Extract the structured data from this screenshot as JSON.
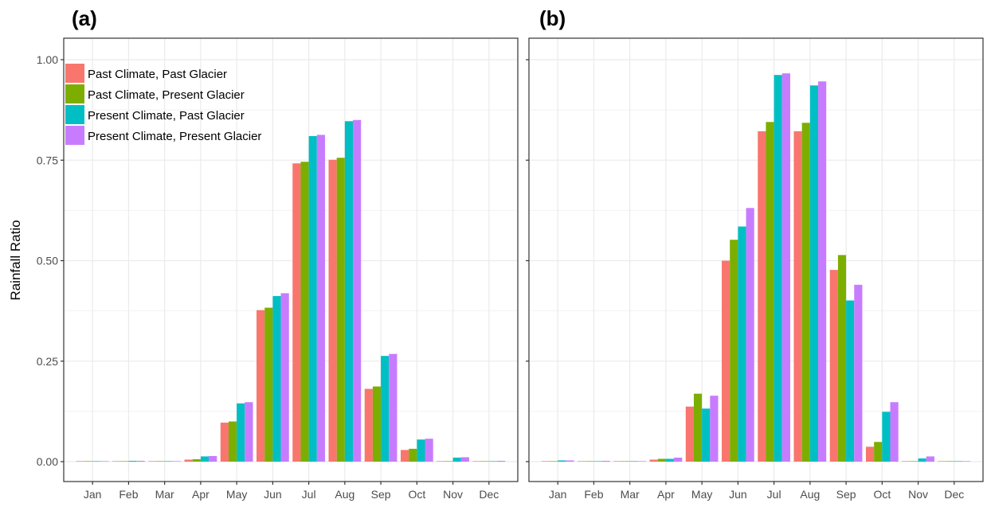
{
  "chart_data": {
    "type": "bar",
    "y_axis_label": "Rainfall Ratio",
    "ylim": [
      0,
      1.05
    ],
    "y_ticks": [
      "0.00",
      "0.25",
      "0.50",
      "0.75",
      "1.00"
    ],
    "categories": [
      "Jan",
      "Feb",
      "Mar",
      "Apr",
      "May",
      "Jun",
      "Jul",
      "Aug",
      "Sep",
      "Oct",
      "Nov",
      "Dec"
    ],
    "grid": true,
    "legend_placement": "top-left",
    "series_names": [
      "Past Climate, Past Glacier",
      "Past Climate, Present Glacier",
      "Present Climate, Past Glacier",
      "Present Climate, Present Glacier"
    ],
    "series_colors": [
      "#f8766d",
      "#7cae00",
      "#00bfc4",
      "#c77cff"
    ],
    "panels": [
      {
        "label": "(a)",
        "series": [
          {
            "values": [
              0.001,
              0.001,
              0.001,
              0.005,
              0.097,
              0.377,
              0.742,
              0.751,
              0.181,
              0.029,
              0.001,
              0.001
            ]
          },
          {
            "values": [
              0.001,
              0.001,
              0.001,
              0.006,
              0.1,
              0.383,
              0.746,
              0.756,
              0.187,
              0.032,
              0.001,
              0.001
            ]
          },
          {
            "values": [
              0.001,
              0.002,
              0.001,
              0.013,
              0.145,
              0.412,
              0.81,
              0.847,
              0.263,
              0.055,
              0.01,
              0.001
            ]
          },
          {
            "values": [
              0.001,
              0.002,
              0.001,
              0.014,
              0.148,
              0.419,
              0.813,
              0.85,
              0.268,
              0.057,
              0.011,
              0.002
            ]
          }
        ]
      },
      {
        "label": "(b)",
        "series": [
          {
            "values": [
              0.001,
              0.001,
              0.001,
              0.005,
              0.137,
              0.5,
              0.822,
              0.822,
              0.477,
              0.037,
              0.001,
              0.001
            ]
          },
          {
            "values": [
              0.001,
              0.001,
              0.001,
              0.007,
              0.169,
              0.552,
              0.845,
              0.843,
              0.514,
              0.049,
              0.001,
              0.001
            ]
          },
          {
            "values": [
              0.003,
              0.001,
              0.001,
              0.007,
              0.132,
              0.585,
              0.962,
              0.936,
              0.401,
              0.124,
              0.008,
              0.001
            ]
          },
          {
            "values": [
              0.003,
              0.002,
              0.001,
              0.01,
              0.164,
              0.631,
              0.966,
              0.946,
              0.44,
              0.148,
              0.013,
              0.001
            ]
          }
        ]
      }
    ]
  }
}
